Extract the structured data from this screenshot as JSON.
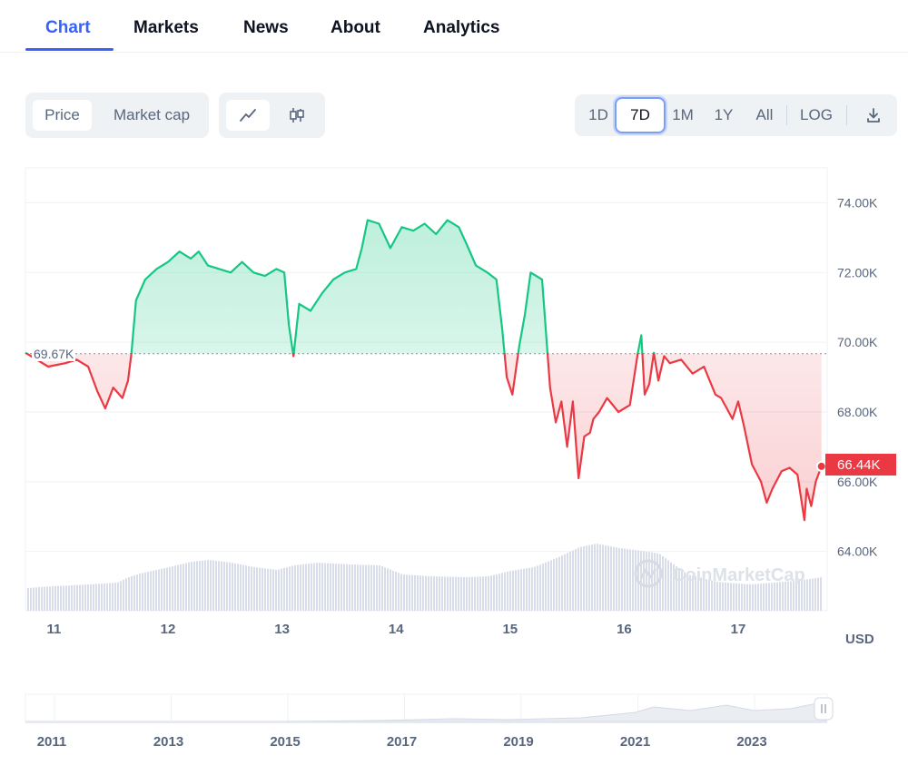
{
  "tabs": [
    {
      "label": "Chart",
      "active": true
    },
    {
      "label": "Markets",
      "active": false
    },
    {
      "label": "News",
      "active": false
    },
    {
      "label": "About",
      "active": false
    },
    {
      "label": "Analytics",
      "active": false
    }
  ],
  "toolbar": {
    "metric_options": [
      "Price",
      "Market cap"
    ],
    "metric_selected": "Price",
    "chart_types": [
      "line-chart-icon",
      "candlestick-icon"
    ],
    "chart_type_selected": "line-chart-icon",
    "ranges": [
      "1D",
      "7D",
      "1M",
      "1Y",
      "All"
    ],
    "range_selected": "7D",
    "log_label": "LOG",
    "download_icon": "download-icon"
  },
  "colors": {
    "accent": "#3861fb",
    "up": "#16c784",
    "down": "#ea3943",
    "volume": "#d9dde9"
  },
  "chart_data": {
    "type": "line",
    "currency_label": "USD",
    "reference_label": "69.67K",
    "reference_value": 69670,
    "current_label": "66.44K",
    "current_value": 66440,
    "y_ticks": [
      "74.00K",
      "72.00K",
      "70.00K",
      "68.00K",
      "66.00K",
      "64.00K"
    ],
    "y_tick_values": [
      74000,
      72000,
      70000,
      68000,
      66000,
      64000
    ],
    "ylim": [
      62300,
      75000
    ],
    "x_ticks": [
      "11",
      "12",
      "13",
      "14",
      "15",
      "16",
      "17"
    ],
    "xlim": [
      10.75,
      17.78
    ],
    "watermark": "CoinMarketCap",
    "series": [
      {
        "x": [
          10.75,
          10.95,
          11.1,
          11.2,
          11.3,
          11.38,
          11.45,
          11.52,
          11.6,
          11.65,
          11.68,
          11.72,
          11.8,
          11.9,
          12.0,
          12.1,
          12.2,
          12.27,
          12.35,
          12.45,
          12.55,
          12.65,
          12.75,
          12.85,
          12.95,
          13.02,
          13.06,
          13.1,
          13.15,
          13.25,
          13.35,
          13.45,
          13.55,
          13.65,
          13.7,
          13.75,
          13.85,
          13.95,
          14.05,
          14.15,
          14.25,
          14.35,
          14.45,
          14.55,
          14.62,
          14.7,
          14.8,
          14.88,
          14.93,
          14.97,
          15.02,
          15.08,
          15.13,
          15.18,
          15.28,
          15.35,
          15.4,
          15.45,
          15.5,
          15.55,
          15.6,
          15.65,
          15.7,
          15.73,
          15.78,
          15.85,
          15.95,
          16.05,
          16.12,
          16.15,
          16.18,
          16.22,
          16.26,
          16.3,
          16.35,
          16.4,
          16.5,
          16.6,
          16.7,
          16.8,
          16.85,
          16.9,
          16.95,
          17.0,
          17.05,
          17.12,
          17.2,
          17.25,
          17.3,
          17.38,
          17.45,
          17.52,
          17.58,
          17.6,
          17.64,
          17.68,
          17.73
        ],
        "y": [
          69700,
          69300,
          69400,
          69500,
          69300,
          68600,
          68100,
          68700,
          68400,
          68900,
          69700,
          71200,
          71800,
          72100,
          72300,
          72600,
          72400,
          72600,
          72200,
          72100,
          72000,
          72300,
          72000,
          71900,
          72100,
          72000,
          70500,
          69600,
          71100,
          70900,
          71400,
          71800,
          72000,
          72100,
          72700,
          73500,
          73400,
          72700,
          73300,
          73200,
          73400,
          73100,
          73500,
          73300,
          72800,
          72200,
          72000,
          71800,
          70400,
          69000,
          68500,
          69900,
          70800,
          72000,
          71800,
          68700,
          67700,
          68300,
          67000,
          68300,
          66100,
          67300,
          67400,
          67800,
          68000,
          68400,
          68000,
          68200,
          69700,
          70200,
          68500,
          68800,
          69700,
          68900,
          69600,
          69400,
          69500,
          69100,
          69300,
          68500,
          68400,
          68100,
          67800,
          68300,
          67600,
          66500,
          66000,
          65400,
          65800,
          66300,
          66400,
          66200,
          64900,
          65800,
          65300,
          66000,
          66440
        ]
      }
    ],
    "volume": [
      [
        10.75,
        0.25
      ],
      [
        11.0,
        0.27
      ],
      [
        11.3,
        0.29
      ],
      [
        11.55,
        0.31
      ],
      [
        11.65,
        0.37
      ],
      [
        11.75,
        0.41
      ],
      [
        12.0,
        0.48
      ],
      [
        12.2,
        0.54
      ],
      [
        12.35,
        0.56
      ],
      [
        12.55,
        0.53
      ],
      [
        12.75,
        0.48
      ],
      [
        12.95,
        0.45
      ],
      [
        13.1,
        0.5
      ],
      [
        13.3,
        0.53
      ],
      [
        13.6,
        0.51
      ],
      [
        13.85,
        0.5
      ],
      [
        14.05,
        0.4
      ],
      [
        14.3,
        0.38
      ],
      [
        14.6,
        0.37
      ],
      [
        14.8,
        0.38
      ],
      [
        15.0,
        0.44
      ],
      [
        15.2,
        0.48
      ],
      [
        15.4,
        0.58
      ],
      [
        15.6,
        0.7
      ],
      [
        15.75,
        0.74
      ],
      [
        15.95,
        0.69
      ],
      [
        16.15,
        0.66
      ],
      [
        16.3,
        0.63
      ],
      [
        16.45,
        0.49
      ],
      [
        16.55,
        0.4
      ],
      [
        16.8,
        0.32
      ],
      [
        17.1,
        0.29
      ],
      [
        17.5,
        0.33
      ],
      [
        17.73,
        0.37
      ]
    ]
  },
  "navigator": {
    "year_labels": [
      "2011",
      "2013",
      "2015",
      "2017",
      "2019",
      "2021",
      "2023"
    ],
    "handle_icon": "drag-handle-icon"
  }
}
